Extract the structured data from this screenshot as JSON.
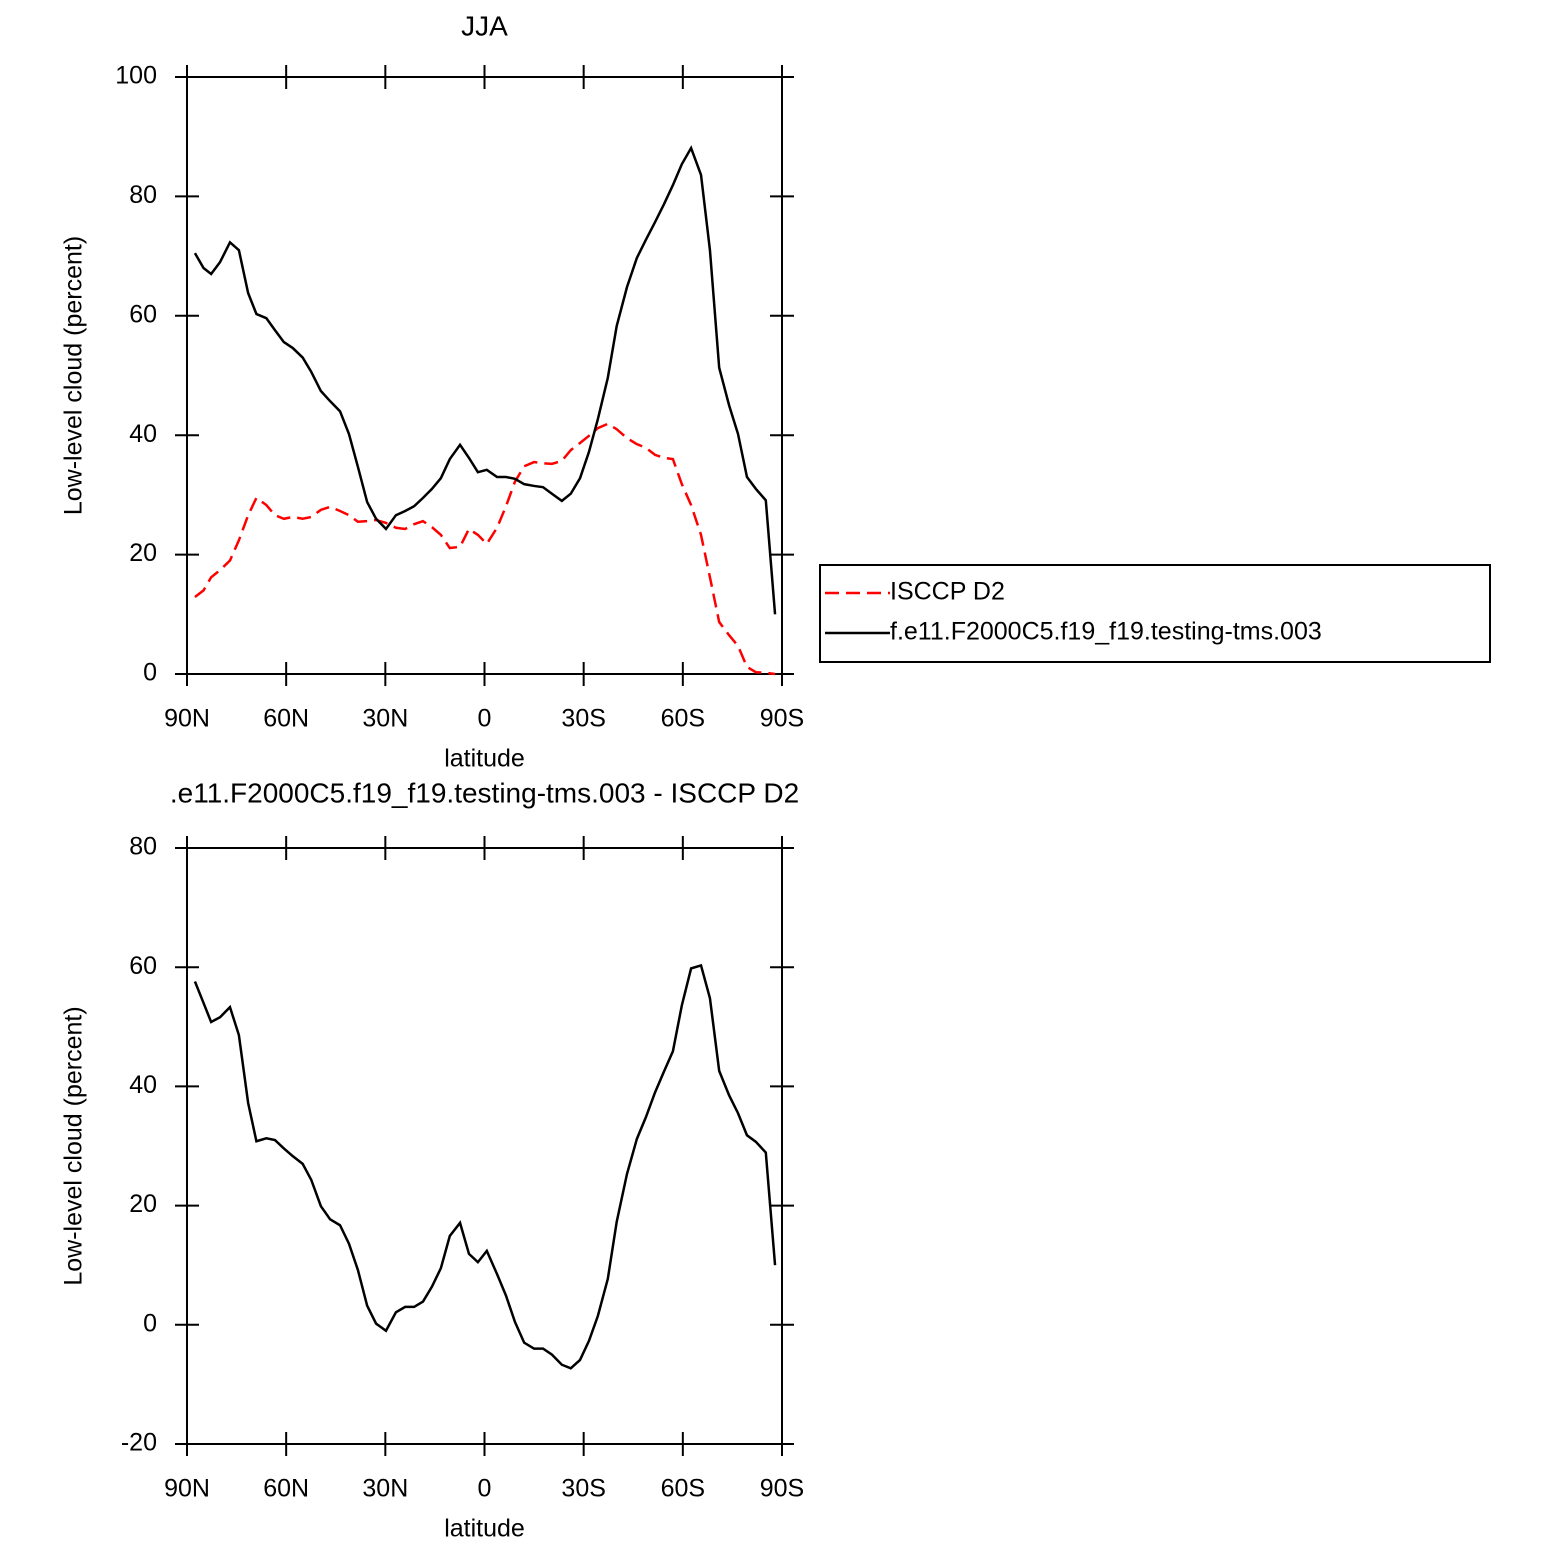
{
  "chart_data": [
    {
      "type": "line",
      "title": "JJA",
      "xlabel": "latitude",
      "ylabel": "Low-level cloud (percent)",
      "xlim": [
        90,
        -90
      ],
      "xticks": [
        {
          "value": 90,
          "label": "90N"
        },
        {
          "value": 60,
          "label": "60N"
        },
        {
          "value": 30,
          "label": "30N"
        },
        0,
        {
          "value": -30,
          "label": "30S"
        },
        {
          "value": -60,
          "label": "60S"
        },
        {
          "value": -90,
          "label": "90S"
        }
      ],
      "ylim": [
        0,
        100
      ],
      "yticks": [
        0,
        20,
        40,
        60,
        80,
        100
      ],
      "legend": "outside right",
      "x": [
        87.6,
        85,
        82.7,
        80,
        77,
        74.3,
        71.5,
        69,
        66,
        63.4,
        60.7,
        58,
        55,
        52.4,
        49.5,
        46.7,
        43.7,
        41,
        38.3,
        35.5,
        32.8,
        29.8,
        26.8,
        24,
        21.3,
        18.6,
        15.9,
        13.2,
        10.5,
        7.4,
        4.7,
        2,
        -0.7,
        -3.8,
        -6.5,
        -9.2,
        -12,
        -15,
        -17.7,
        -20.4,
        -23.4,
        -26.1,
        -28.9,
        -31.6,
        -34.3,
        -37.3,
        -40,
        -43.1,
        -46.1,
        -48.8,
        -51.6,
        -54.3,
        -57,
        -59.7,
        -62.5,
        -65.5,
        -68.2,
        -71,
        -74,
        -76.7,
        -79.4,
        -82.1,
        -85.1,
        -87.9
      ],
      "series": [
        {
          "name": "ISCCP D2",
          "color": "#ff0000",
          "linestyle": "dashed",
          "values": [
            12.9,
            14,
            16.2,
            17.4,
            19,
            22.4,
            26.6,
            29.5,
            28.3,
            26.6,
            26,
            26.3,
            26,
            26.3,
            27.5,
            28,
            27.3,
            26.6,
            25.5,
            25.6,
            25.8,
            25.3,
            24.5,
            24.3,
            25.1,
            25.6,
            24.6,
            23.3,
            21.1,
            21.3,
            24.3,
            23.3,
            21.8,
            24.5,
            28.1,
            32.2,
            34.8,
            35.5,
            35.3,
            35.2,
            35.7,
            37.5,
            38.7,
            39.9,
            41.2,
            41.9,
            41,
            39.5,
            38.5,
            37.9,
            36.7,
            36.2,
            36,
            31.8,
            28.3,
            23.3,
            16.2,
            8.7,
            6.5,
            4.7,
            1.2,
            0.3,
            0.2,
            0
          ]
        },
        {
          "name": "f.e11.F2000C5.f19_f19.testing-tms.003",
          "color": "#000000",
          "linestyle": "solid",
          "values": [
            70.5,
            68,
            67,
            69,
            72.3,
            71,
            63.8,
            60.3,
            59.6,
            57.6,
            55.6,
            54.6,
            53,
            50.6,
            47.4,
            45.7,
            44,
            40.2,
            34.7,
            28.8,
            26,
            24.3,
            26.6,
            27.3,
            28.1,
            29.5,
            31,
            32.8,
            36,
            38.4,
            36.2,
            33.8,
            34.2,
            33,
            33,
            32.7,
            31.8,
            31.5,
            31.3,
            30.2,
            29,
            30.2,
            32.8,
            37.2,
            42.7,
            49.6,
            58.3,
            64.8,
            69.7,
            72.7,
            75.7,
            78.7,
            81.9,
            85.4,
            88.1,
            83.6,
            71,
            51.3,
            45,
            40.2,
            33,
            31,
            29.1,
            10
          ]
        }
      ]
    },
    {
      "type": "line",
      "title": ".e11.F2000C5.f19_f19.testing-tms.003 - ISCCP D2",
      "xlabel": "latitude",
      "ylabel": "Low-level cloud (percent)",
      "xlim": [
        90,
        -90
      ],
      "xticks": [
        {
          "value": 90,
          "label": "90N"
        },
        {
          "value": 60,
          "label": "60N"
        },
        {
          "value": 30,
          "label": "30N"
        },
        0,
        {
          "value": -30,
          "label": "30S"
        },
        {
          "value": -60,
          "label": "60S"
        },
        {
          "value": -90,
          "label": "90S"
        }
      ],
      "ylim": [
        -20,
        80
      ],
      "yticks": [
        -20,
        0,
        20,
        40,
        60,
        80
      ],
      "x": [
        87.6,
        85,
        82.7,
        80,
        77,
        74.3,
        71.5,
        69,
        66,
        63.4,
        60.7,
        58,
        55,
        52.4,
        49.5,
        46.7,
        43.7,
        41,
        38.3,
        35.5,
        32.8,
        29.8,
        26.8,
        24,
        21.3,
        18.6,
        15.9,
        13.2,
        10.5,
        7.4,
        4.7,
        2,
        -0.7,
        -3.8,
        -6.5,
        -9.2,
        -12,
        -15,
        -17.7,
        -20.4,
        -23.4,
        -26.1,
        -28.9,
        -31.6,
        -34.3,
        -37.3,
        -40,
        -43.1,
        -46.1,
        -48.8,
        -51.6,
        -54.3,
        -57,
        -59.7,
        -62.5,
        -65.5,
        -68.2,
        -71,
        -74,
        -76.7,
        -79.4,
        -82.1,
        -85.1,
        -87.9
      ],
      "series": [
        {
          "color": "#000000",
          "linestyle": "solid",
          "values": [
            57.6,
            54,
            50.8,
            51.6,
            53.3,
            48.6,
            37.2,
            30.8,
            31.3,
            31,
            29.6,
            28.3,
            27,
            24.3,
            19.9,
            17.7,
            16.7,
            13.6,
            9.2,
            3.2,
            0.2,
            -1,
            2.1,
            3,
            3,
            3.9,
            6.4,
            9.5,
            14.9,
            17.1,
            11.9,
            10.5,
            12.4,
            8.5,
            4.9,
            0.5,
            -3,
            -4,
            -4,
            -5,
            -6.7,
            -7.3,
            -5.9,
            -2.7,
            1.5,
            7.7,
            17.3,
            25.3,
            31.2,
            34.8,
            39,
            42.5,
            45.9,
            53.6,
            59.8,
            60.3,
            54.8,
            42.6,
            38.5,
            35.5,
            31.8,
            30.7,
            28.9,
            10
          ]
        }
      ]
    }
  ]
}
